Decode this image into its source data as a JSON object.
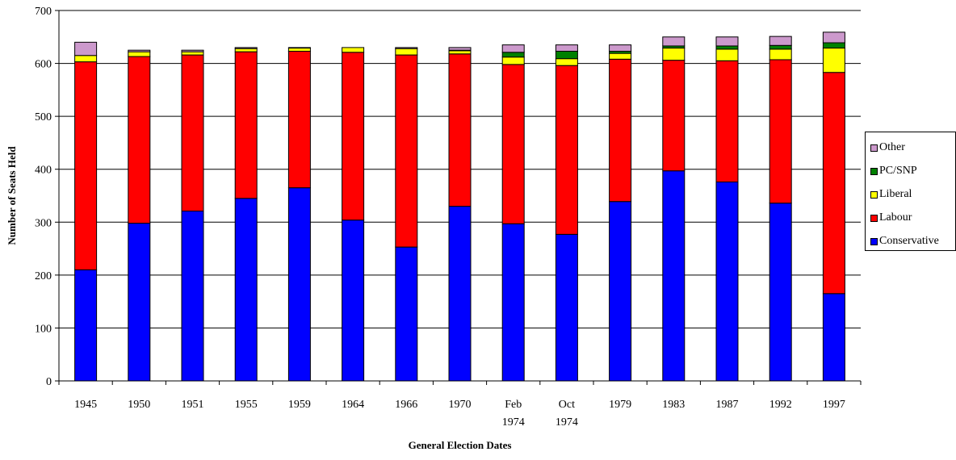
{
  "chart_data": {
    "type": "bar",
    "stacked": true,
    "title": "",
    "xlabel": "General Election Dates",
    "ylabel": "Number of Seats Held",
    "ylim": [
      0,
      700
    ],
    "yticks": [
      0,
      100,
      200,
      300,
      400,
      500,
      600,
      700
    ],
    "grid": "horizontal",
    "legend_position": "right",
    "categories": [
      "1945",
      "1950",
      "1951",
      "1955",
      "1959",
      "1964",
      "1966",
      "1970",
      "Feb 1974",
      "Oct 1974",
      "1979",
      "1983",
      "1987",
      "1992",
      "1997"
    ],
    "series": [
      {
        "name": "Conservative",
        "color": "#0000ff",
        "values": [
          210,
          298,
          321,
          345,
          365,
          304,
          253,
          330,
          297,
          277,
          339,
          397,
          376,
          336,
          165
        ]
      },
      {
        "name": "Labour",
        "color": "#ff0000",
        "values": [
          393,
          315,
          295,
          277,
          258,
          317,
          363,
          288,
          301,
          319,
          269,
          209,
          229,
          271,
          418
        ]
      },
      {
        "name": "Liberal",
        "color": "#ffff00",
        "values": [
          12,
          9,
          6,
          6,
          6,
          9,
          12,
          6,
          14,
          13,
          11,
          23,
          22,
          20,
          46
        ]
      },
      {
        "name": "PC/SNP",
        "color": "#008000",
        "values": [
          0,
          0,
          0,
          0,
          0,
          0,
          0,
          1,
          9,
          14,
          4,
          4,
          6,
          7,
          10
        ]
      },
      {
        "name": "Other",
        "color": "#cc99cc",
        "values": [
          25,
          3,
          3,
          2,
          1,
          0,
          2,
          5,
          14,
          12,
          12,
          17,
          17,
          17,
          20
        ]
      }
    ],
    "legend_order": [
      "Other",
      "PC/SNP",
      "Liberal",
      "Labour",
      "Conservative"
    ]
  }
}
